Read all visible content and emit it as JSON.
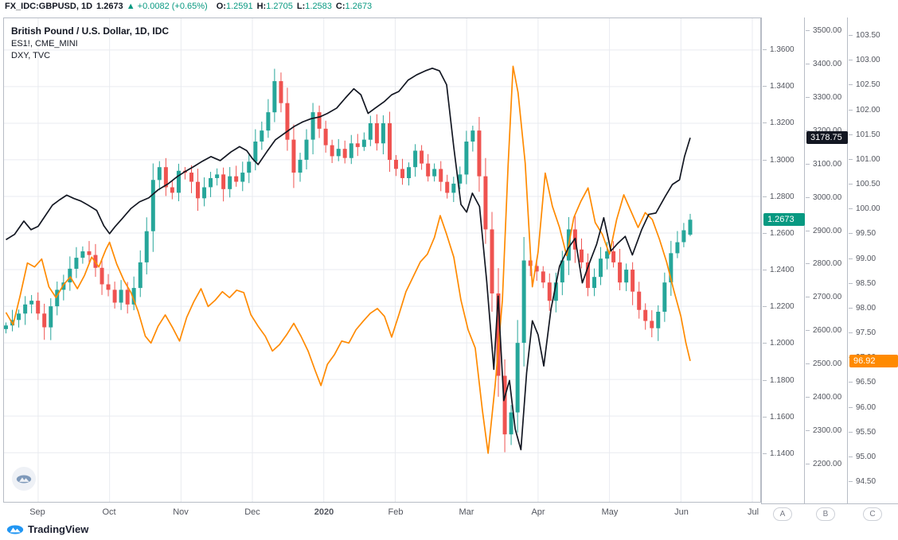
{
  "header": {
    "symbol": "FX_IDC:GBPUSD, 1D",
    "last": "1.2673",
    "up_arrow": "▲",
    "change": "+0.0082 (+0.65%)",
    "ohlc": [
      {
        "label": "O:",
        "value": "1.2591"
      },
      {
        "label": "H:",
        "value": "1.2705"
      },
      {
        "label": "L:",
        "value": "1.2583"
      },
      {
        "label": "C:",
        "value": "1.2673"
      }
    ]
  },
  "legend": {
    "line1": "British Pound / U.S. Dollar, 1D, IDC",
    "line2": "ES1!, CME_MINI",
    "line3": "DXY, TVC"
  },
  "footer": {
    "brand": "TradingView"
  },
  "colors": {
    "up": "#26a69a",
    "up_text": "#089981",
    "down": "#ef5350",
    "es_line": "#131722",
    "dxy_line": "#ff8a00",
    "grid": "#e9ebf0",
    "frame": "#b7bcc5",
    "axis_text": "#52555e",
    "brand_blue": "#2196f3",
    "watermark_blue": "#7e99ba"
  },
  "chart_data": {
    "type": "mixed",
    "title": "British Pound / U.S. Dollar, 1D, IDC with ES1! (CME_MINI) and DXY (TVC) overlays",
    "x_axis": {
      "tick_labels": [
        "Sep",
        "Oct",
        "Nov",
        "Dec",
        "2020",
        "Feb",
        "Mar",
        "Apr",
        "May",
        "Jun",
        "Jul"
      ],
      "unit": "month index (0 = Sep 2019 tick)"
    },
    "axes": [
      {
        "id": "A",
        "button": "A",
        "last_price": "1.2673",
        "ticks": [
          "1.3600",
          "1.3400",
          "1.3200",
          "1.3000",
          "1.2800",
          "1.2600",
          "1.2400",
          "1.2200",
          "1.2000",
          "1.1800",
          "1.1600",
          "1.1400"
        ]
      },
      {
        "id": "B",
        "button": "B",
        "last_price": "3178.75",
        "ticks": [
          "3500.00",
          "3400.00",
          "3300.00",
          "3200.00",
          "3100.00",
          "3000.00",
          "2900.00",
          "2800.00",
          "2700.00",
          "2600.00",
          "2500.00",
          "2400.00",
          "2300.00",
          "2200.00"
        ]
      },
      {
        "id": "C",
        "button": "C",
        "last_price": "96.92",
        "ticks": [
          "103.50",
          "103.00",
          "102.50",
          "102.00",
          "101.50",
          "101.00",
          "100.50",
          "100.00",
          "99.50",
          "99.00",
          "98.50",
          "98.00",
          "97.50",
          "97.00",
          "96.50",
          "96.00",
          "95.50",
          "95.00",
          "94.50"
        ]
      }
    ],
    "series": [
      {
        "name": "GBPUSD",
        "type": "candlestick",
        "axis": "A",
        "x_start": -0.45,
        "x_end": 9.13,
        "last_ohlc": {
          "o": 1.2591,
          "h": 1.2705,
          "l": 1.2583,
          "c": 1.2673
        },
        "closes": [
          1.2095,
          1.2125,
          1.216,
          1.221,
          1.223,
          1.216,
          1.2085,
          1.22,
          1.229,
          1.233,
          1.2405,
          1.2465,
          1.25,
          1.248,
          1.241,
          1.232,
          1.229,
          1.222,
          1.229,
          1.221,
          1.23,
          1.244,
          1.261,
          1.289,
          1.296,
          1.285,
          1.282,
          1.294,
          1.293,
          1.288,
          1.279,
          1.285,
          1.29,
          1.292,
          1.284,
          1.291,
          1.288,
          1.293,
          1.299,
          1.31,
          1.316,
          1.326,
          1.343,
          1.331,
          1.311,
          1.293,
          1.3,
          1.311,
          1.326,
          1.317,
          1.308,
          1.302,
          1.306,
          1.301,
          1.309,
          1.307,
          1.311,
          1.32,
          1.309,
          1.32,
          1.3,
          1.295,
          1.29,
          1.296,
          1.305,
          1.298,
          1.291,
          1.295,
          1.288,
          1.282,
          1.287,
          1.292,
          1.31,
          1.316,
          1.291,
          1.262,
          1.227,
          1.182,
          1.15,
          1.162,
          1.2,
          1.245,
          1.242,
          1.239,
          1.233,
          1.223,
          1.233,
          1.245,
          1.262,
          1.251,
          1.244,
          1.23,
          1.236,
          1.246,
          1.25,
          1.244,
          1.233,
          1.24,
          1.228,
          1.218,
          1.212,
          1.208,
          1.217,
          1.233,
          1.249,
          1.255,
          1.2615,
          1.2673
        ]
      },
      {
        "name": "ES1!",
        "type": "line",
        "axis": "B",
        "points": [
          [
            -0.45,
            2872
          ],
          [
            -0.33,
            2888
          ],
          [
            -0.2,
            2928
          ],
          [
            -0.1,
            2902
          ],
          [
            0,
            2912
          ],
          [
            0.1,
            2944
          ],
          [
            0.2,
            2976
          ],
          [
            0.3,
            2992
          ],
          [
            0.4,
            3006
          ],
          [
            0.5,
            2996
          ],
          [
            0.6,
            2988
          ],
          [
            0.7,
            2976
          ],
          [
            0.82,
            2960
          ],
          [
            0.92,
            2914
          ],
          [
            1,
            2890
          ],
          [
            1.08,
            2912
          ],
          [
            1.18,
            2936
          ],
          [
            1.3,
            2966
          ],
          [
            1.42,
            2986
          ],
          [
            1.55,
            2998
          ],
          [
            1.68,
            3022
          ],
          [
            1.82,
            3040
          ],
          [
            1.95,
            3062
          ],
          [
            2.05,
            3076
          ],
          [
            2.18,
            3092
          ],
          [
            2.3,
            3108
          ],
          [
            2.42,
            3122
          ],
          [
            2.55,
            3110
          ],
          [
            2.7,
            3136
          ],
          [
            2.82,
            3152
          ],
          [
            2.92,
            3140
          ],
          [
            3,
            3116
          ],
          [
            3.08,
            3098
          ],
          [
            3.2,
            3136
          ],
          [
            3.32,
            3172
          ],
          [
            3.45,
            3192
          ],
          [
            3.58,
            3212
          ],
          [
            3.7,
            3226
          ],
          [
            3.82,
            3236
          ],
          [
            3.95,
            3242
          ],
          [
            4.05,
            3252
          ],
          [
            4.18,
            3268
          ],
          [
            4.3,
            3298
          ],
          [
            4.42,
            3326
          ],
          [
            4.52,
            3308
          ],
          [
            4.62,
            3252
          ],
          [
            4.72,
            3268
          ],
          [
            4.85,
            3288
          ],
          [
            4.95,
            3308
          ],
          [
            5.05,
            3318
          ],
          [
            5.18,
            3352
          ],
          [
            5.3,
            3368
          ],
          [
            5.42,
            3380
          ],
          [
            5.52,
            3388
          ],
          [
            5.62,
            3380
          ],
          [
            5.72,
            3338
          ],
          [
            5.82,
            3150
          ],
          [
            5.92,
            2978
          ],
          [
            6,
            2955
          ],
          [
            6.08,
            3012
          ],
          [
            6.18,
            2972
          ],
          [
            6.28,
            2748
          ],
          [
            6.38,
            2482
          ],
          [
            6.44,
            2702
          ],
          [
            6.52,
            2388
          ],
          [
            6.6,
            2448
          ],
          [
            6.68,
            2302
          ],
          [
            6.76,
            2240
          ],
          [
            6.84,
            2472
          ],
          [
            6.92,
            2628
          ],
          [
            7,
            2586
          ],
          [
            7.08,
            2492
          ],
          [
            7.18,
            2662
          ],
          [
            7.3,
            2792
          ],
          [
            7.42,
            2846
          ],
          [
            7.52,
            2876
          ],
          [
            7.62,
            2742
          ],
          [
            7.72,
            2802
          ],
          [
            7.82,
            2858
          ],
          [
            7.92,
            2938
          ],
          [
            8.02,
            2838
          ],
          [
            8.12,
            2862
          ],
          [
            8.22,
            2882
          ],
          [
            8.32,
            2826
          ],
          [
            8.45,
            2902
          ],
          [
            8.55,
            2948
          ],
          [
            8.65,
            2952
          ],
          [
            8.78,
            3002
          ],
          [
            8.88,
            3038
          ],
          [
            8.98,
            3052
          ],
          [
            9.05,
            3122
          ],
          [
            9.13,
            3178.75
          ]
        ]
      },
      {
        "name": "DXY",
        "type": "line",
        "axis": "C",
        "points": [
          [
            -0.45,
            97.9
          ],
          [
            -0.35,
            97.65
          ],
          [
            -0.25,
            98.25
          ],
          [
            -0.15,
            98.9
          ],
          [
            -0.05,
            98.82
          ],
          [
            0.05,
            98.98
          ],
          [
            0.15,
            98.42
          ],
          [
            0.25,
            98.2
          ],
          [
            0.35,
            98.45
          ],
          [
            0.45,
            98.62
          ],
          [
            0.55,
            98.38
          ],
          [
            0.65,
            98.65
          ],
          [
            0.75,
            99.02
          ],
          [
            0.85,
            98.82
          ],
          [
            0.95,
            99.18
          ],
          [
            1,
            99.32
          ],
          [
            1.1,
            98.88
          ],
          [
            1.2,
            98.55
          ],
          [
            1.3,
            98.3
          ],
          [
            1.4,
            97.92
          ],
          [
            1.5,
            97.42
          ],
          [
            1.58,
            97.28
          ],
          [
            1.68,
            97.62
          ],
          [
            1.78,
            97.85
          ],
          [
            1.88,
            97.6
          ],
          [
            1.98,
            97.32
          ],
          [
            2.08,
            97.8
          ],
          [
            2.18,
            98.12
          ],
          [
            2.28,
            98.38
          ],
          [
            2.38,
            98.02
          ],
          [
            2.48,
            98.15
          ],
          [
            2.58,
            98.32
          ],
          [
            2.68,
            98.2
          ],
          [
            2.78,
            98.35
          ],
          [
            2.88,
            98.3
          ],
          [
            2.98,
            97.85
          ],
          [
            3.08,
            97.62
          ],
          [
            3.18,
            97.42
          ],
          [
            3.28,
            97.12
          ],
          [
            3.38,
            97.25
          ],
          [
            3.48,
            97.45
          ],
          [
            3.58,
            97.68
          ],
          [
            3.68,
            97.42
          ],
          [
            3.78,
            97.12
          ],
          [
            3.88,
            96.72
          ],
          [
            3.96,
            96.42
          ],
          [
            4.05,
            96.85
          ],
          [
            4.15,
            97.05
          ],
          [
            4.25,
            97.32
          ],
          [
            4.35,
            97.28
          ],
          [
            4.45,
            97.55
          ],
          [
            4.55,
            97.72
          ],
          [
            4.65,
            97.88
          ],
          [
            4.75,
            97.98
          ],
          [
            4.85,
            97.82
          ],
          [
            4.95,
            97.4
          ],
          [
            5.05,
            97.85
          ],
          [
            5.15,
            98.32
          ],
          [
            5.25,
            98.62
          ],
          [
            5.35,
            98.92
          ],
          [
            5.45,
            99.08
          ],
          [
            5.55,
            99.42
          ],
          [
            5.63,
            99.86
          ],
          [
            5.72,
            99.48
          ],
          [
            5.82,
            99.02
          ],
          [
            5.92,
            98.15
          ],
          [
            6.02,
            97.55
          ],
          [
            6.12,
            97.18
          ],
          [
            6.22,
            95.92
          ],
          [
            6.3,
            95.05
          ],
          [
            6.4,
            96.45
          ],
          [
            6.5,
            98.15
          ],
          [
            6.58,
            100.85
          ],
          [
            6.65,
            102.88
          ],
          [
            6.72,
            102.35
          ],
          [
            6.82,
            100.92
          ],
          [
            6.92,
            98.42
          ],
          [
            7,
            99.12
          ],
          [
            7.1,
            100.72
          ],
          [
            7.2,
            100.05
          ],
          [
            7.3,
            99.62
          ],
          [
            7.4,
            99.05
          ],
          [
            7.5,
            99.82
          ],
          [
            7.6,
            100.15
          ],
          [
            7.7,
            100.42
          ],
          [
            7.8,
            99.72
          ],
          [
            7.9,
            99.48
          ],
          [
            8,
            99.08
          ],
          [
            8.1,
            99.78
          ],
          [
            8.2,
            100.28
          ],
          [
            8.3,
            99.95
          ],
          [
            8.4,
            99.62
          ],
          [
            8.5,
            99.92
          ],
          [
            8.6,
            99.78
          ],
          [
            8.7,
            99.38
          ],
          [
            8.8,
            98.92
          ],
          [
            8.9,
            98.35
          ],
          [
            9,
            97.82
          ],
          [
            9.07,
            97.28
          ],
          [
            9.13,
            96.92
          ]
        ]
      }
    ]
  }
}
